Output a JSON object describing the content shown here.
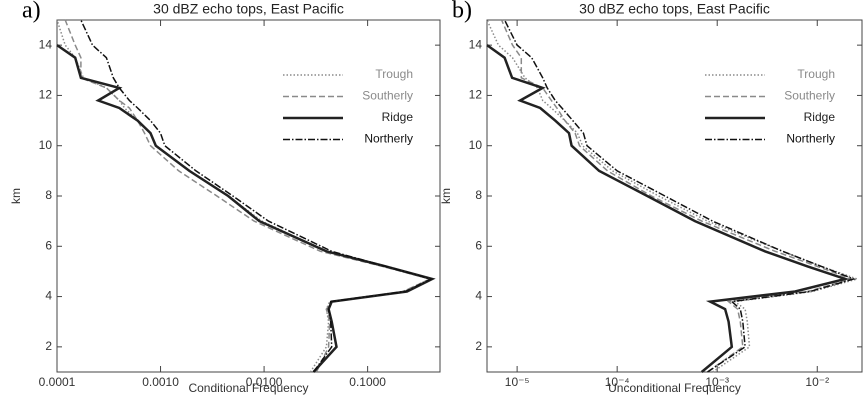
{
  "chart_data": [
    {
      "type": "line",
      "panel_label": "a)",
      "title": "30 dBZ echo tops, East Pacific",
      "xlabel": "Conditional Frequency",
      "ylabel": "km",
      "xscale": "log",
      "xlim": [
        0.0001,
        0.5
      ],
      "ylim": [
        1,
        15
      ],
      "xticks": [
        {
          "value": 0.0001,
          "label": "0.0001"
        },
        {
          "value": 0.001,
          "label": "0.0010"
        },
        {
          "value": 0.01,
          "label": "0.0100"
        },
        {
          "value": 0.1,
          "label": "0.1000"
        }
      ],
      "yticks": [
        2,
        4,
        6,
        8,
        10,
        12,
        14
      ],
      "legend": "upper right",
      "y": [
        1,
        2,
        3,
        3.5,
        3.8,
        4.2,
        4.7,
        5.2,
        5.8,
        7,
        8,
        9,
        10,
        10.5,
        11,
        11.5,
        11.8,
        12.3,
        12.7,
        13.5,
        14,
        15
      ],
      "series": [
        {
          "name": "Trough",
          "color": "#8a8a8a",
          "dash": "dotted",
          "line_width": 1.5,
          "values": [
            0.028,
            0.04,
            0.042,
            0.04,
            0.043,
            0.22,
            0.4,
            0.14,
            0.04,
            0.0095,
            0.0045,
            0.0019,
            0.0009,
            0.0008,
            0.0006,
            0.00045,
            0.0004,
            0.0003,
            0.00018,
            0.00015,
            0.00012,
            0.0001
          ]
        },
        {
          "name": "Southerly",
          "color": "#8a8a8a",
          "dash": "dashed",
          "line_width": 1.5,
          "values": [
            0.032,
            0.042,
            0.043,
            0.04,
            0.045,
            0.22,
            0.4,
            0.14,
            0.035,
            0.008,
            0.0035,
            0.0015,
            0.0008,
            0.0007,
            0.0006,
            0.0005,
            0.0004,
            0.0003,
            0.00017,
            0.00017,
            0.00015,
            0.00012
          ]
        },
        {
          "name": "Ridge",
          "color": "#222222",
          "dash": "solid",
          "line_width": 2.5,
          "values": [
            0.03,
            0.05,
            0.045,
            0.042,
            0.045,
            0.24,
            0.42,
            0.15,
            0.04,
            0.009,
            0.0045,
            0.0019,
            0.0009,
            0.0008,
            0.0006,
            0.0004,
            0.00025,
            0.0004,
            0.00017,
            0.00015,
            0.0001,
            null
          ]
        },
        {
          "name": "Northerly",
          "color": "#111111",
          "dash": "dashdot",
          "line_width": 1.5,
          "values": [
            0.03,
            0.045,
            0.044,
            0.042,
            0.044,
            0.23,
            0.41,
            0.15,
            0.045,
            0.011,
            0.005,
            0.0022,
            0.0011,
            0.001,
            0.0008,
            0.0006,
            0.0005,
            0.0004,
            0.00035,
            0.0003,
            0.00022,
            0.00017
          ]
        }
      ]
    },
    {
      "type": "line",
      "panel_label": "b)",
      "title": "30 dBZ echo tops, East Pacific",
      "xlabel": "Unconditional Frequency",
      "ylabel": "km",
      "xscale": "log",
      "xlim": [
        5e-06,
        0.028
      ],
      "ylim": [
        1,
        15
      ],
      "xticks": [
        {
          "value": 1e-05,
          "label": "10⁻⁵"
        },
        {
          "value": 0.0001,
          "label": "10⁻⁴"
        },
        {
          "value": 0.001,
          "label": "10⁻³"
        },
        {
          "value": 0.01,
          "label": "10⁻²"
        }
      ],
      "yticks": [
        2,
        4,
        6,
        8,
        10,
        12,
        14
      ],
      "legend": "upper right",
      "y": [
        1,
        2,
        3,
        3.5,
        3.8,
        4.2,
        4.7,
        5.2,
        5.8,
        7,
        8,
        9,
        10,
        10.5,
        11,
        11.5,
        11.8,
        12.3,
        12.7,
        13.5,
        14,
        15
      ],
      "series": [
        {
          "name": "Trough",
          "color": "#8a8a8a",
          "dash": "dotted",
          "line_width": 1.5,
          "values": [
            0.0009,
            0.0021,
            0.002,
            0.0019,
            0.0015,
            0.009,
            0.025,
            0.011,
            0.0045,
            0.0008,
            0.00026,
            9e-05,
            4.5e-05,
            4e-05,
            3e-05,
            2.2e-05,
            1.8e-05,
            1.6e-05,
            1.2e-05,
            9e-06,
            6.5e-06,
            5e-06
          ]
        },
        {
          "name": "Southerly",
          "color": "#8a8a8a",
          "dash": "dashed",
          "line_width": 1.5,
          "values": [
            0.0008,
            0.0018,
            0.0017,
            0.0016,
            0.0013,
            0.008,
            0.022,
            0.01,
            0.0038,
            0.0007,
            0.00022,
            8e-05,
            4.2e-05,
            3.8e-05,
            3e-05,
            2.5e-05,
            2.2e-05,
            1.8e-05,
            1.1e-05,
            1.1e-05,
            9e-06,
            7e-06
          ]
        },
        {
          "name": "Ridge",
          "color": "#222222",
          "dash": "solid",
          "line_width": 2.5,
          "values": [
            0.0007,
            0.0014,
            0.0013,
            0.0012,
            0.00085,
            0.006,
            0.019,
            0.008,
            0.003,
            0.0006,
            0.0002,
            6.6e-05,
            3.5e-05,
            3.3e-05,
            2.4e-05,
            1.7e-05,
            1.07e-05,
            1.8e-05,
            8.9e-06,
            7.5e-06,
            5e-06,
            null
          ]
        },
        {
          "name": "Northerly",
          "color": "#111111",
          "dash": "dashdot",
          "line_width": 1.5,
          "values": [
            0.0008,
            0.0019,
            0.0018,
            0.0017,
            0.0014,
            0.0085,
            0.023,
            0.011,
            0.0045,
            0.0009,
            0.0003,
            0.0001,
            5e-05,
            4.6e-05,
            3.6e-05,
            2.8e-05,
            2.4e-05,
            2e-05,
            1.8e-05,
            1.4e-05,
            1e-05,
            7.5e-06
          ]
        }
      ]
    }
  ]
}
